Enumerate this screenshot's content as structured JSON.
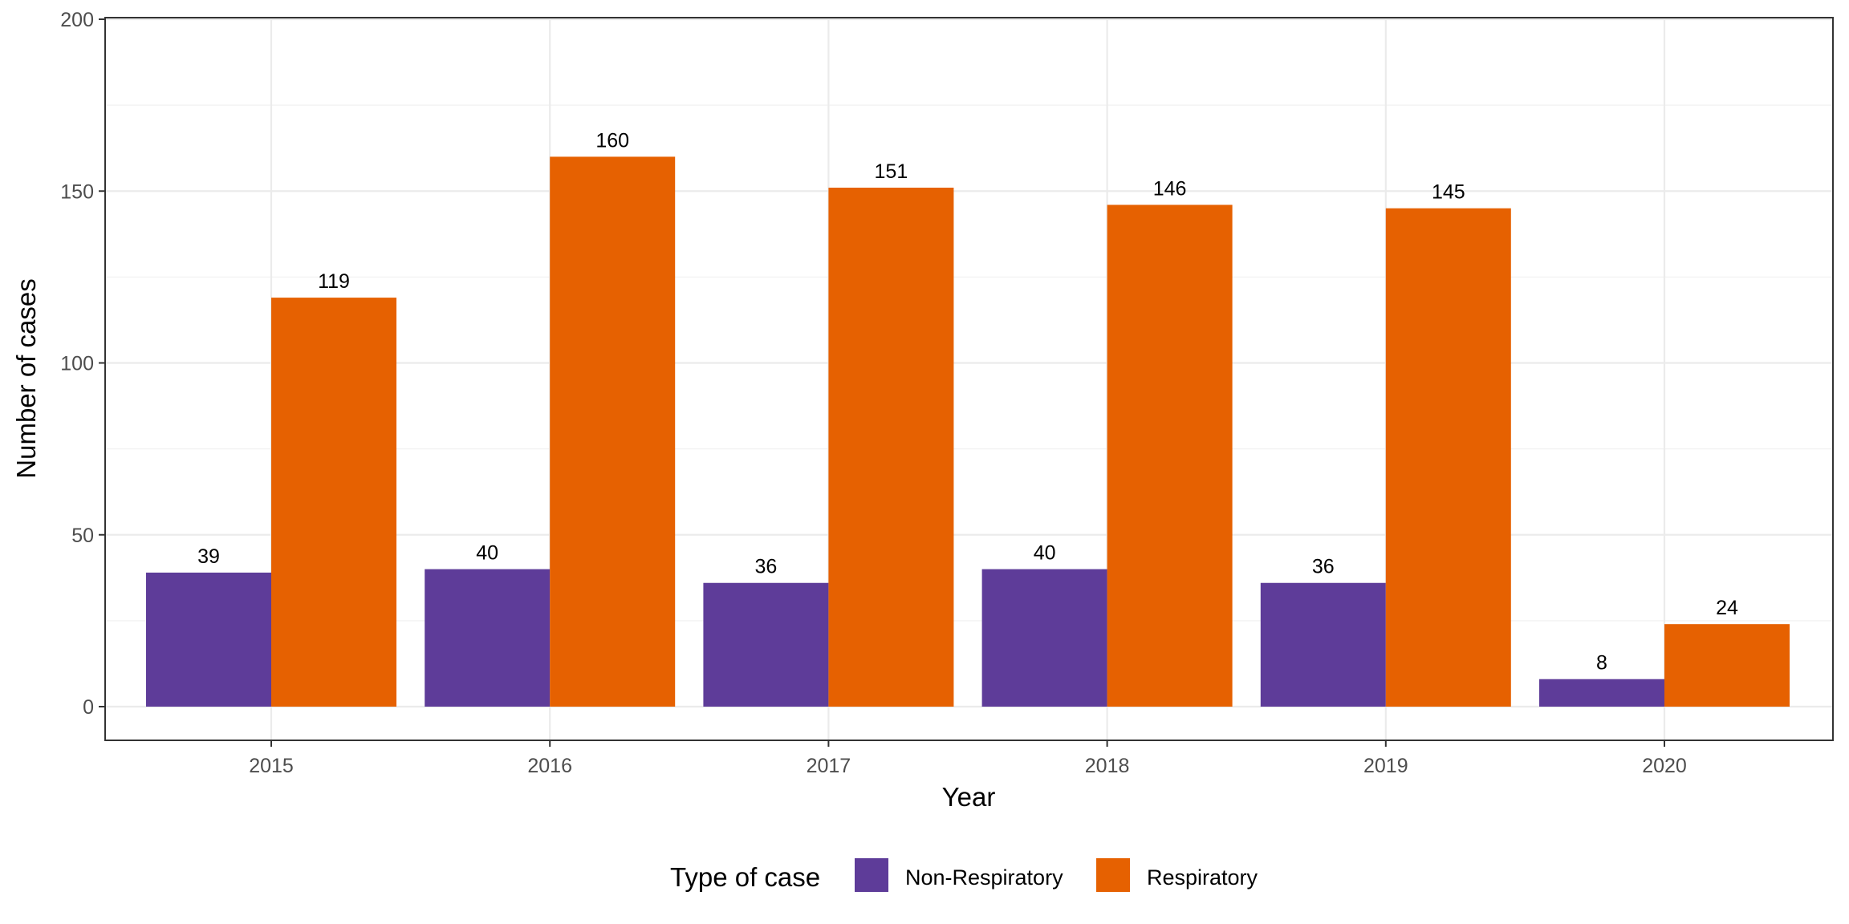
{
  "chart_data": {
    "type": "bar",
    "title": "",
    "xlabel": "Year",
    "ylabel": "Number of cases",
    "categories": [
      "2015",
      "2016",
      "2017",
      "2018",
      "2019",
      "2020"
    ],
    "series": [
      {
        "name": "Non-Respiratory",
        "color": "#5e3c99",
        "values": [
          39,
          40,
          36,
          40,
          36,
          8
        ]
      },
      {
        "name": "Respiratory",
        "color": "#e66101",
        "values": [
          119,
          160,
          151,
          146,
          145,
          24
        ]
      }
    ],
    "ylim": [
      0,
      200
    ],
    "yticks": [
      0,
      50,
      100,
      150,
      200
    ],
    "grid": true,
    "legend": {
      "title": "Type of case",
      "position": "bottom"
    }
  }
}
